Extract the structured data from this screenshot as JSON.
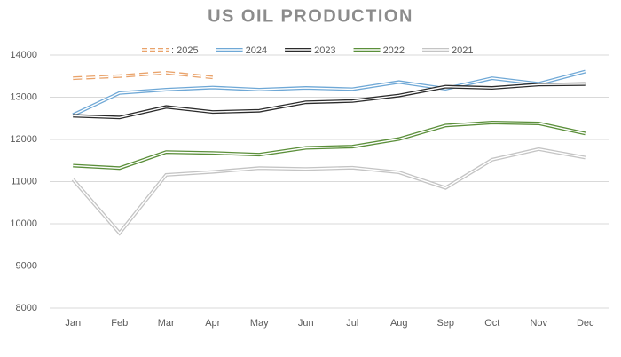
{
  "chart_data": {
    "type": "line",
    "title": "US OIL PRODUCTION",
    "categories": [
      "Jan",
      "Feb",
      "Mar",
      "Apr",
      "May",
      "Jun",
      "Jul",
      "Aug",
      "Sep",
      "Oct",
      "Nov",
      "Dec"
    ],
    "series": [
      {
        "name": ": 2025",
        "color": "#e9a36b",
        "dashed": true,
        "values": [
          13450,
          13500,
          13580,
          13470,
          null,
          null,
          null,
          null,
          null,
          null,
          null,
          null
        ]
      },
      {
        "name": "2024",
        "color": "#6fa8d6",
        "values": [
          12580,
          13100,
          13180,
          13230,
          13180,
          13220,
          13190,
          13360,
          13200,
          13450,
          13320,
          13610
        ]
      },
      {
        "name": "2023",
        "color": "#2b2b2b",
        "values": [
          12560,
          12520,
          12770,
          12650,
          12680,
          12880,
          12910,
          13040,
          13250,
          13220,
          13300,
          13310
        ]
      },
      {
        "name": "2022",
        "color": "#5b8f3a",
        "values": [
          11380,
          11320,
          11700,
          11680,
          11640,
          11800,
          11830,
          12010,
          12330,
          12400,
          12380,
          12140
        ]
      },
      {
        "name": "2021",
        "color": "#c4c4c4",
        "values": [
          11050,
          9780,
          11160,
          11230,
          11320,
          11300,
          11330,
          11220,
          10850,
          11520,
          11770,
          11570
        ]
      }
    ],
    "ylim": [
      8000,
      14000
    ],
    "yticks": [
      8000,
      9000,
      10000,
      11000,
      12000,
      13000,
      14000
    ],
    "grid": true
  }
}
